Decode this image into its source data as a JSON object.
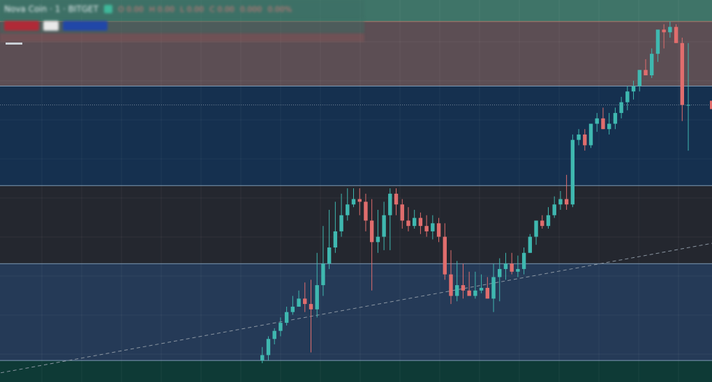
{
  "legend": {
    "title": "Nova Coin · 1 · BITGET",
    "ohlc_values": [
      "O 0.00",
      "H 0.00",
      "L 0.00",
      "C 0.00",
      "0.000",
      "0.00%"
    ]
  },
  "colors": {
    "bull": "#3fb8b0",
    "bear": "#e06d6d",
    "zone_top": "#5c4e54",
    "zone_upper": "#15304f",
    "zone_mid": "#24272f",
    "zone_lower": "#253a57",
    "zone_bottom": "#0e3a36",
    "header_band": "#3f7468",
    "divider": "#7f9bb6",
    "price_line": "#9aa8b8",
    "trend_line": "#8c97a3"
  },
  "chart_data": {
    "type": "candlestick",
    "x": [
      1,
      2,
      3,
      4,
      5,
      6,
      7,
      8,
      9,
      10,
      11,
      12,
      13,
      14,
      15,
      16,
      17,
      18,
      19,
      20,
      21,
      22,
      23,
      24,
      25,
      26,
      27,
      28,
      29,
      30,
      31,
      32,
      33,
      34,
      35,
      36,
      37,
      38,
      39,
      40,
      41,
      42,
      43,
      44,
      45,
      46,
      47,
      48,
      49,
      50,
      51,
      52,
      53,
      54,
      55,
      56,
      57,
      58,
      59,
      60,
      61,
      62,
      63,
      64,
      65,
      66,
      67,
      68,
      69,
      70,
      71,
      72,
      73,
      74,
      75,
      76,
      77,
      78,
      79,
      80,
      81,
      82,
      83,
      84,
      85,
      86,
      87,
      88,
      89,
      90,
      91,
      92,
      93,
      94,
      95,
      96,
      97,
      98,
      99,
      100,
      101,
      102,
      103,
      104,
      105,
      106,
      107,
      108,
      109,
      110,
      111,
      112,
      113,
      114,
      115,
      116,
      117,
      118,
      119
    ],
    "open": [
      null,
      null,
      null,
      null,
      null,
      null,
      null,
      null,
      null,
      null,
      null,
      null,
      null,
      null,
      null,
      null,
      null,
      null,
      null,
      null,
      null,
      null,
      null,
      null,
      null,
      null,
      null,
      null,
      null,
      null,
      null,
      null,
      null,
      null,
      null,
      null,
      null,
      null,
      null,
      null,
      null,
      null,
      null,
      null,
      4.0,
      6.0,
      12.0,
      15.0,
      18.0,
      22.0,
      24.0,
      27.0,
      25.0,
      23.0,
      32.0,
      40.0,
      46.0,
      52.0,
      58.0,
      62.0,
      64.0,
      63.0,
      56.0,
      48.0,
      50.0,
      58.0,
      66.0,
      62.0,
      56.0,
      54.0,
      57.0,
      54.0,
      52.0,
      55.0,
      50.0,
      36.0,
      28.0,
      32.0,
      30.0,
      28.0,
      30.0,
      31.0,
      27.0,
      35.0,
      38.0,
      40.0,
      37.0,
      38.0,
      44.0,
      50.0,
      56.0,
      54.0,
      58.0,
      62.0,
      64.0,
      62.0,
      86.0,
      88.0,
      84.0,
      92.0,
      94.0,
      90.0,
      92.0,
      96.0,
      100.0,
      104.0,
      106.0,
      112.0,
      110.0,
      118.0,
      127.0,
      126.0,
      128.0,
      122.0,
      99.0,
      null,
      null,
      null,
      null
    ],
    "high": [
      null,
      null,
      null,
      null,
      null,
      null,
      null,
      null,
      null,
      null,
      null,
      null,
      null,
      null,
      null,
      null,
      null,
      null,
      null,
      null,
      null,
      null,
      null,
      null,
      null,
      null,
      null,
      null,
      null,
      null,
      null,
      null,
      null,
      null,
      null,
      null,
      null,
      null,
      null,
      null,
      null,
      null,
      null,
      null,
      9.0,
      13.0,
      16.0,
      20.0,
      24.0,
      28.0,
      30.0,
      33.0,
      34.0,
      44.0,
      54.0,
      60.0,
      63.0,
      66.0,
      68.0,
      68.0,
      68.0,
      66.0,
      64.0,
      60.0,
      63.0,
      68.0,
      68.0,
      64.0,
      61.0,
      60.0,
      59.0,
      58.0,
      58.0,
      57.0,
      55.0,
      45.0,
      41.0,
      40.0,
      37.0,
      37.0,
      36.0,
      35.0,
      40.0,
      42.0,
      44.0,
      44.0,
      43.0,
      46.0,
      51.0,
      56.0,
      58.0,
      61.0,
      65.0,
      67.0,
      73.0,
      88.0,
      90.0,
      90.0,
      92.0,
      96.0,
      98.0,
      96.0,
      98.0,
      102.0,
      106.0,
      108.0,
      112.0,
      116.0,
      120.0,
      126.0,
      129.0,
      130.0,
      129.0,
      124.0,
      122.0,
      null,
      null,
      null,
      null
    ],
    "low": [
      null,
      null,
      null,
      null,
      null,
      null,
      null,
      null,
      null,
      null,
      null,
      null,
      null,
      null,
      null,
      null,
      null,
      null,
      null,
      null,
      null,
      null,
      null,
      null,
      null,
      null,
      null,
      null,
      null,
      null,
      null,
      null,
      null,
      null,
      null,
      null,
      null,
      null,
      null,
      null,
      null,
      null,
      null,
      null,
      3.0,
      4.0,
      10.0,
      13.0,
      17.0,
      21.0,
      24.0,
      22.0,
      7.0,
      20.0,
      28.0,
      38.0,
      44.0,
      50.0,
      56.0,
      61.0,
      58.0,
      52.0,
      30.0,
      44.0,
      45.0,
      45.0,
      58.0,
      53.0,
      52.0,
      53.0,
      51.0,
      50.0,
      49.0,
      48.0,
      34.0,
      25.0,
      26.0,
      27.0,
      28.0,
      27.0,
      29.0,
      27.0,
      22.0,
      26.0,
      34.0,
      36.0,
      35.0,
      36.0,
      44.0,
      47.0,
      53.0,
      53.0,
      57.0,
      60.0,
      60.0,
      61.0,
      84.0,
      82.0,
      83.0,
      89.0,
      90.0,
      88.0,
      90.0,
      94.0,
      97.0,
      101.0,
      104.0,
      110.0,
      109.0,
      115.0,
      120.0,
      124.0,
      122.0,
      93.0,
      82.0,
      null,
      null,
      null,
      null
    ],
    "close": [
      null,
      null,
      null,
      null,
      null,
      null,
      null,
      null,
      null,
      null,
      null,
      null,
      null,
      null,
      null,
      null,
      null,
      null,
      null,
      null,
      null,
      null,
      null,
      null,
      null,
      null,
      null,
      null,
      null,
      null,
      null,
      null,
      null,
      null,
      null,
      null,
      null,
      null,
      null,
      null,
      null,
      null,
      null,
      null,
      6.0,
      12.0,
      15.0,
      18.0,
      22.0,
      24.0,
      27.0,
      25.0,
      23.0,
      32.0,
      40.0,
      46.0,
      52.0,
      58.0,
      62.0,
      64.0,
      63.0,
      56.0,
      48.0,
      50.0,
      58.0,
      66.0,
      62.0,
      56.0,
      54.0,
      57.0,
      54.0,
      52.0,
      55.0,
      50.0,
      36.0,
      28.0,
      32.0,
      30.0,
      28.0,
      30.0,
      31.0,
      27.0,
      35.0,
      38.0,
      40.0,
      37.0,
      38.0,
      44.0,
      50.0,
      56.0,
      54.0,
      58.0,
      62.0,
      64.0,
      62.0,
      86.0,
      88.0,
      84.0,
      92.0,
      94.0,
      90.0,
      92.0,
      96.0,
      100.0,
      104.0,
      106.0,
      112.0,
      110.0,
      118.0,
      127.0,
      126.0,
      128.0,
      122.0,
      99.0,
      99.0,
      null,
      null,
      null,
      null
    ],
    "zones": [
      {
        "name": "top-zone",
        "from": 106,
        "to": 130
      },
      {
        "name": "upper-zone",
        "from": 69,
        "to": 106
      },
      {
        "name": "mid-zone",
        "from": 40,
        "to": 69
      },
      {
        "name": "lower-zone",
        "from": 4,
        "to": 40
      }
    ],
    "last_price": 99,
    "trend_line": {
      "x1": 0,
      "y1": -1,
      "x2": 119,
      "y2": 48
    },
    "ylim": [
      -4,
      138
    ],
    "grid": true
  }
}
